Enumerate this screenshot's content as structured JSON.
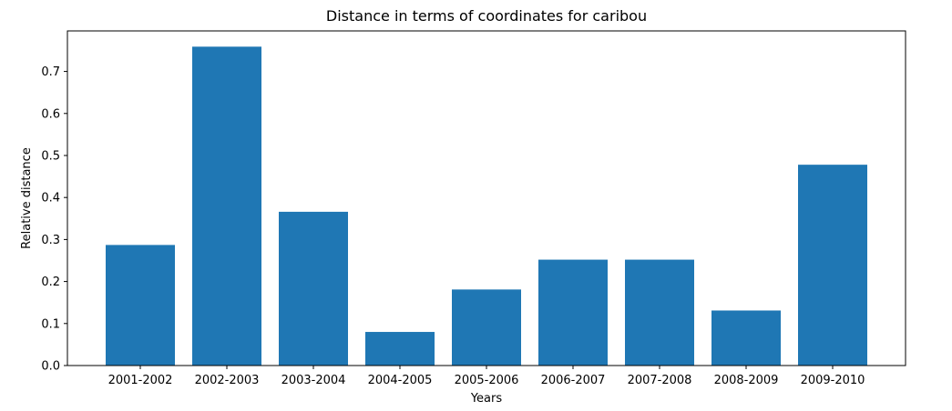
{
  "chart_data": {
    "type": "bar",
    "title": "Distance in terms of coordinates for caribou",
    "xlabel": "Years",
    "ylabel": "Relative distance",
    "categories": [
      "2001-2002",
      "2002-2003",
      "2003-2004",
      "2004-2005",
      "2005-2006",
      "2006-2007",
      "2007-2008",
      "2008-2009",
      "2009-2010"
    ],
    "values": [
      0.287,
      0.759,
      0.366,
      0.08,
      0.181,
      0.252,
      0.252,
      0.131,
      0.478
    ],
    "ylim": [
      0,
      0.7965
    ],
    "yticks": [
      0.0,
      0.1,
      0.2,
      0.3,
      0.4,
      0.5,
      0.6,
      0.7
    ],
    "ytick_labels": [
      "0.0",
      "0.1",
      "0.2",
      "0.3",
      "0.4",
      "0.5",
      "0.6",
      "0.7"
    ],
    "grid": false,
    "bar_color": "#1f77b4"
  }
}
